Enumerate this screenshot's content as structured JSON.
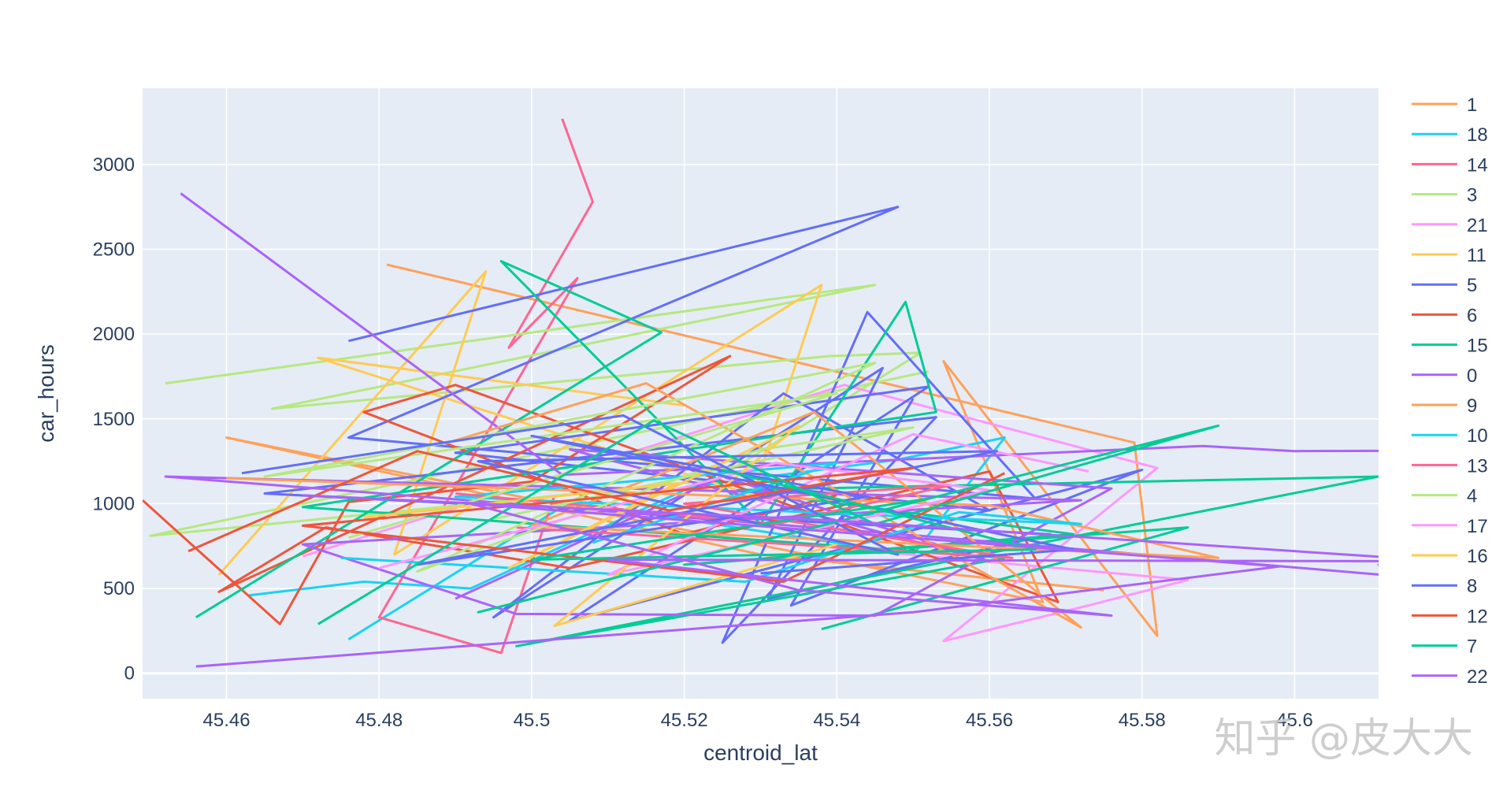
{
  "chart_data": {
    "type": "line",
    "title": "",
    "xlabel": "centroid_lat",
    "ylabel": "car_hours",
    "xlim": [
      45.449,
      45.611
    ],
    "ylim": [
      -150,
      3450
    ],
    "x_ticks": [
      {
        "value": 45.46,
        "label": "45.46"
      },
      {
        "value": 45.48,
        "label": "45.48"
      },
      {
        "value": 45.5,
        "label": "45.5"
      },
      {
        "value": 45.52,
        "label": "45.52"
      },
      {
        "value": 45.54,
        "label": "45.54"
      },
      {
        "value": 45.56,
        "label": "45.56"
      },
      {
        "value": 45.58,
        "label": "45.58"
      },
      {
        "value": 45.6,
        "label": "45.6"
      }
    ],
    "y_ticks": [
      {
        "value": 0,
        "label": "0"
      },
      {
        "value": 500,
        "label": "500"
      },
      {
        "value": 1000,
        "label": "1000"
      },
      {
        "value": 1500,
        "label": "1500"
      },
      {
        "value": 2000,
        "label": "2000"
      },
      {
        "value": 2500,
        "label": "2500"
      },
      {
        "value": 3000,
        "label": "3000"
      }
    ],
    "grid": true,
    "legend_position": "right",
    "series": [
      {
        "name": "1",
        "color": "#FFA15A",
        "x": [
          45.481,
          45.579,
          45.582,
          45.554,
          45.567,
          45.46,
          45.53,
          45.575
        ],
        "y": [
          2410,
          1360,
          220,
          1840,
          420,
          1390,
          700,
          490
        ]
      },
      {
        "name": "18",
        "color": "#19D3F3",
        "x": [
          45.463,
          45.478,
          45.492,
          45.521,
          45.548,
          45.562,
          45.55,
          45.505,
          45.476
        ],
        "y": [
          460,
          540,
          500,
          1100,
          1260,
          1390,
          700,
          1010,
          200
        ]
      },
      {
        "name": "14",
        "color": "#FF6692",
        "x": [
          45.504,
          45.508,
          45.497,
          45.506,
          45.48,
          45.496,
          45.503
        ],
        "y": [
          3270,
          2780,
          1920,
          2330,
          330,
          120,
          1050
        ]
      },
      {
        "name": "3",
        "color": "#B6E880",
        "x": [
          45.452,
          45.545,
          45.466,
          45.539,
          45.551,
          45.524,
          45.45,
          45.552
        ],
        "y": [
          1710,
          2290,
          1560,
          1870,
          1890,
          1140,
          810,
          1780
        ]
      },
      {
        "name": "21",
        "color": "#FF97FF",
        "x": [
          45.47,
          45.541,
          45.582,
          45.554,
          45.573,
          45.586,
          45.53
        ],
        "y": [
          690,
          1700,
          1210,
          190,
          400,
          550,
          780
        ]
      },
      {
        "name": "11",
        "color": "#FECB52",
        "x": [
          45.459,
          45.494,
          45.482,
          45.538,
          45.529,
          45.472,
          45.52
        ],
        "y": [
          580,
          2370,
          700,
          2290,
          1050,
          1860,
          1580
        ]
      },
      {
        "name": "5",
        "color": "#636EFA",
        "x": [
          45.476,
          45.548,
          45.476,
          45.566,
          45.544,
          45.525,
          45.553,
          45.465,
          45.568,
          45.531,
          45.546,
          45.495,
          45.533,
          45.56,
          45.49,
          45.552,
          45.505,
          45.58,
          45.534,
          45.55
        ],
        "y": [
          1960,
          2750,
          1390,
          1030,
          2130,
          180,
          1510,
          1060,
          820,
          440,
          1800,
          330,
          1650,
          960,
          1300,
          1690,
          310,
          1200,
          400,
          1620
        ]
      },
      {
        "name": "6",
        "color": "#EF553B",
        "x": [
          45.449,
          45.467,
          45.476,
          45.5,
          45.526,
          45.459,
          45.473,
          45.505,
          45.56,
          45.569,
          45.49,
          45.478,
          45.52,
          45.54
        ],
        "y": [
          1020,
          290,
          1010,
          1130,
          1870,
          480,
          860,
          620,
          1190,
          420,
          1700,
          1540,
          820,
          1050
        ]
      },
      {
        "name": "15",
        "color": "#00CC96",
        "x": [
          45.456,
          45.517,
          45.496,
          45.53,
          45.549,
          45.553,
          45.47,
          45.562,
          45.498,
          45.611,
          45.527,
          45.571,
          45.52,
          45.586,
          45.538
        ],
        "y": [
          330,
          2010,
          2430,
          880,
          2190,
          1540,
          980,
          680,
          160,
          1160,
          1080,
          820,
          640,
          860,
          260
        ]
      },
      {
        "name": "0",
        "color": "#AB63FA",
        "x": [
          45.454,
          45.504,
          45.588,
          45.6,
          45.669,
          45.611,
          45.63,
          45.551,
          45.452,
          45.572,
          45.47,
          45.498,
          45.545,
          45.576,
          45.505,
          45.56,
          45.525,
          45.49
        ],
        "y": [
          2830,
          1170,
          1340,
          1310,
          1320,
          640,
          510,
          810,
          1160,
          1020,
          760,
          350,
          340,
          1090,
          1320,
          660,
          1160,
          440
        ]
      },
      {
        "name": "9",
        "color": "#FFA15A",
        "x": [
          45.46,
          45.56,
          45.59,
          45.5,
          45.537,
          45.572,
          45.515,
          45.489
        ],
        "y": [
          1150,
          990,
          680,
          870,
          1540,
          270,
          1710,
          1360
        ]
      },
      {
        "name": "10",
        "color": "#19D3F3",
        "x": [
          45.475,
          45.528,
          45.556,
          45.572,
          45.49,
          45.54,
          45.508
        ],
        "y": [
          680,
          540,
          950,
          880,
          1040,
          1240,
          770
        ]
      },
      {
        "name": "13",
        "color": "#FF6692",
        "x": [
          45.49,
          45.532,
          45.555,
          45.52,
          45.563,
          45.498
        ],
        "y": [
          1060,
          880,
          1110,
          1000,
          680,
          860
        ]
      },
      {
        "name": "4",
        "color": "#B6E880",
        "x": [
          45.476,
          45.54,
          45.465,
          45.545,
          45.485,
          45.53,
          45.55,
          45.495
        ],
        "y": [
          800,
          1650,
          1160,
          1830,
          600,
          1320,
          1450,
          910
        ]
      },
      {
        "name": "17",
        "color": "#FF97FF",
        "x": [
          45.48,
          45.532,
          45.56,
          45.51,
          45.55,
          45.573
        ],
        "y": [
          620,
          1240,
          1080,
          580,
          1410,
          1190
        ]
      },
      {
        "name": "16",
        "color": "#FECB52",
        "x": [
          45.478,
          45.519,
          45.497,
          45.535,
          45.503,
          45.54
        ],
        "y": [
          920,
          1120,
          620,
          1460,
          280,
          760
        ]
      },
      {
        "name": "8",
        "color": "#636EFA",
        "x": [
          45.462,
          45.512,
          45.548,
          45.493,
          45.561,
          45.485,
          45.544,
          45.5,
          45.571,
          45.53
        ],
        "y": [
          1180,
          1520,
          700,
          1250,
          1310,
          640,
          1040,
          1400,
          730,
          590
        ]
      },
      {
        "name": "12",
        "color": "#EF553B",
        "x": [
          45.455,
          45.485,
          45.518,
          45.55,
          45.47,
          45.533,
          45.562
        ],
        "y": [
          720,
          1310,
          960,
          1210,
          870,
          540,
          1180
        ]
      },
      {
        "name": "7",
        "color": "#00CC96",
        "x": [
          45.472,
          45.516,
          45.545,
          45.59,
          45.493,
          45.552,
          45.5,
          45.566,
          45.525
        ],
        "y": [
          290,
          1490,
          880,
          1460,
          360,
          1030,
          670,
          730,
          1200
        ]
      },
      {
        "name": "22",
        "color": "#AB63FA",
        "x": [
          45.456,
          45.55,
          45.598,
          45.492,
          45.535,
          45.576,
          45.51,
          45.62,
          45.54,
          45.47
        ],
        "y": [
          40,
          360,
          630,
          1000,
          490,
          340,
          670,
          660,
          900,
          1050
        ]
      }
    ]
  },
  "watermark": {
    "text": "知乎 @皮大大"
  }
}
